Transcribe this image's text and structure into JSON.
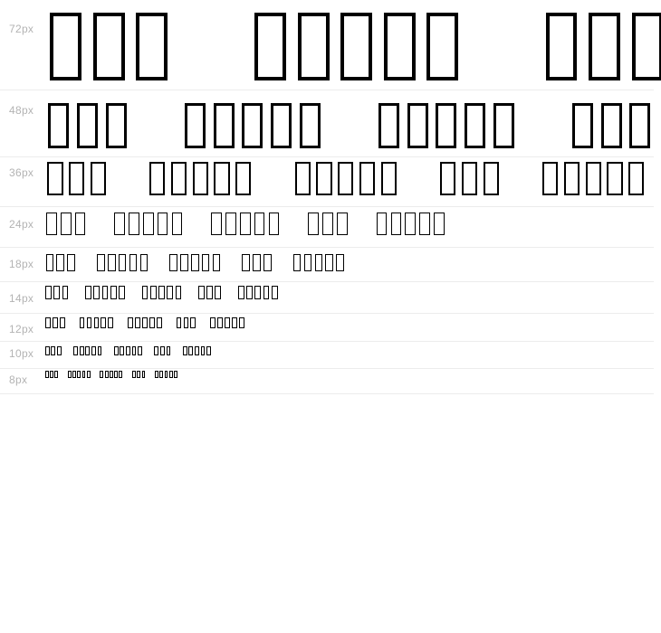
{
  "waterfall": {
    "rows": [
      {
        "label": "72px",
        "size": 72
      },
      {
        "label": "48px",
        "size": 48
      },
      {
        "label": "36px",
        "size": 36
      },
      {
        "label": "24px",
        "size": 24
      },
      {
        "label": "18px",
        "size": 18
      },
      {
        "label": "14px",
        "size": 14
      },
      {
        "label": "12px",
        "size": 12
      },
      {
        "label": "10px",
        "size": 10
      },
      {
        "label": "8px",
        "size": 8
      }
    ],
    "sample_word_glyph_counts": [
      3,
      5,
      5,
      3,
      5
    ],
    "glyph": "notdef-box"
  },
  "colors": {
    "background": "#ffffff",
    "glyph": "#000000",
    "size_label": "#b3b3b3",
    "divider": "#ececec"
  }
}
